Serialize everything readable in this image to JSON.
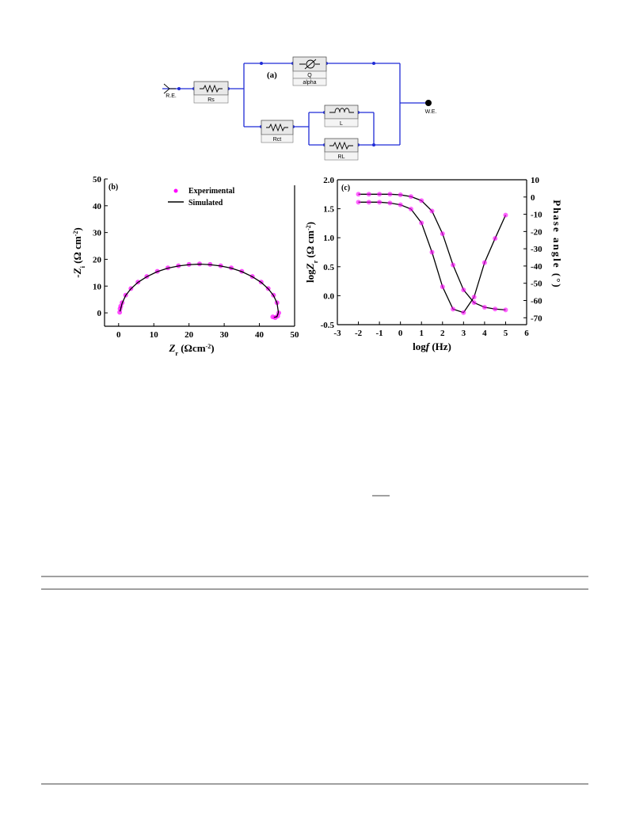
{
  "diagram": {
    "label": "(a)",
    "reference": "R.E.",
    "working": "W.E.",
    "rs": "Rs",
    "q": "Q",
    "alpha": "alpha",
    "rct": "Rct",
    "l": "L",
    "rl": "RL"
  },
  "chart_data": [
    {
      "type": "scatter",
      "panel": "(b)",
      "x_label": [
        "Z",
        "r",
        " (Ωcm",
        "-2",
        ")"
      ],
      "y_label": [
        "-Z",
        "i",
        " (Ω cm",
        "-2",
        ")"
      ],
      "xlim": [
        -4,
        50
      ],
      "ylim": [
        -5,
        50
      ],
      "xticks": [
        0,
        10,
        20,
        30,
        40,
        50
      ],
      "yticks": [
        0,
        10,
        20,
        30,
        40,
        50
      ],
      "legend": "upper center",
      "series": [
        {
          "name": "Experimental",
          "color": "#ff00ff",
          "mode": "markers",
          "x": [
            0.3,
            0.4,
            0.6,
            1,
            2,
            3.5,
            5.5,
            8,
            11,
            14,
            17,
            20,
            23,
            26,
            29,
            32,
            35,
            38,
            40.5,
            42.5,
            44,
            45,
            45.5,
            45.2,
            44.5,
            43.8
          ],
          "values": [
            0.2,
            1.5,
            2.5,
            3.8,
            6.6,
            9.1,
            11.5,
            13.6,
            15.5,
            16.8,
            17.6,
            18.1,
            18.3,
            18.1,
            17.6,
            16.8,
            15.5,
            13.6,
            11.5,
            9.1,
            6.6,
            3.8,
            0,
            -1.2,
            -1.8,
            -1.5
          ]
        },
        {
          "name": "Simulated",
          "color": "#000000",
          "mode": "line",
          "x": [
            0.4,
            1,
            2,
            3.5,
            5.5,
            8,
            11,
            14,
            17,
            20,
            23,
            26,
            29,
            32,
            35,
            38,
            40.5,
            42.5,
            44,
            45,
            45.4,
            45,
            44.2
          ],
          "values": [
            0.5,
            3.6,
            6.5,
            9,
            11.4,
            13.5,
            15.4,
            16.7,
            17.5,
            18,
            18.2,
            18,
            17.5,
            16.7,
            15.4,
            13.5,
            11.4,
            9,
            6.5,
            3.7,
            0.2,
            -1.4,
            -1.7
          ]
        }
      ]
    },
    {
      "type": "line",
      "panel": "(c)",
      "x_label": [
        "log",
        "f",
        " (Hz)"
      ],
      "y_label": [
        "log",
        "Z",
        "r",
        " (Ω  cm",
        "-2",
        ")"
      ],
      "y2_label": "Phase angle (°)",
      "xlim": [
        -3,
        6
      ],
      "xticks": [
        -3,
        -2,
        -1,
        0,
        1,
        2,
        3,
        4,
        5,
        6
      ],
      "ylim": [
        -0.5,
        2.0
      ],
      "yticks": [
        -0.5,
        {
          "value": 0,
          "label": "0.0"
        },
        0.5,
        {
          "value": 1,
          "label": "1.0"
        },
        1.5,
        {
          "value": 2,
          "label": "2.0"
        }
      ],
      "y2lim": [
        -74,
        10
      ],
      "y2ticks": [
        -70,
        -60,
        -50,
        -40,
        -30,
        -20,
        -10,
        0,
        10
      ],
      "x": [
        -2,
        -1.5,
        -1,
        -0.5,
        0,
        0.5,
        1,
        1.5,
        2,
        2.5,
        3,
        3.5,
        4,
        4.5,
        5
      ],
      "series": [
        {
          "color": "#ff00ff",
          "line_color": "#000000",
          "values": [
            1.75,
            1.75,
            1.75,
            1.75,
            1.74,
            1.71,
            1.64,
            1.46,
            1.07,
            0.53,
            0.1,
            -0.12,
            -0.2,
            -0.23,
            -0.245
          ]
        },
        {
          "color": "#ff00ff",
          "line_color": "#000000",
          "axis": "y2",
          "values": [
            -3,
            -3,
            -3,
            -3.5,
            -4.5,
            -7,
            -15,
            -32,
            -52,
            -65,
            -67,
            -58,
            -38,
            -24,
            -10.5
          ]
        }
      ]
    }
  ]
}
